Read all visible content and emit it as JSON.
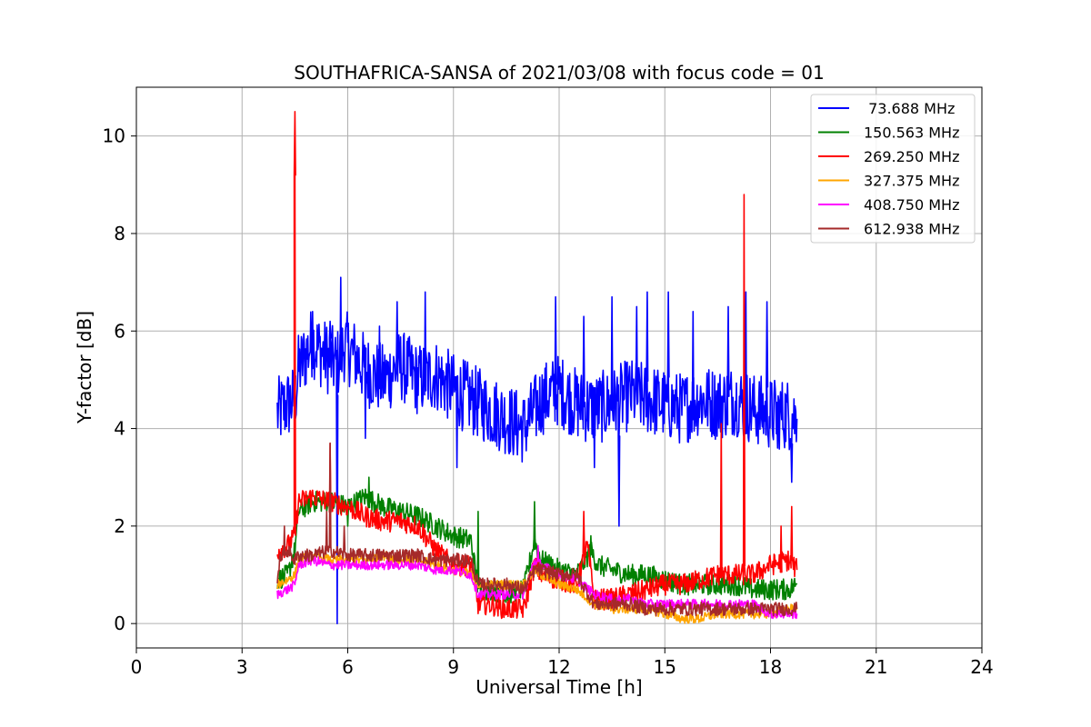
{
  "chart_data": {
    "type": "line",
    "title": "SOUTHAFRICA-SANSA of 2021/03/08 with focus code = 01",
    "xlabel": "Universal Time [h]",
    "ylabel": "Y-factor [dB]",
    "xlim": [
      0,
      24
    ],
    "ylim": [
      -0.5,
      11
    ],
    "xticks": [
      0,
      3,
      6,
      9,
      12,
      15,
      18,
      21,
      24
    ],
    "yticks": [
      0,
      2,
      4,
      6,
      8,
      10
    ],
    "grid": true,
    "legend_position": "top-right",
    "series": [
      {
        "name": " 73.688 MHz",
        "color": "#0000ff",
        "points": [
          [
            4.0,
            4.3
          ],
          [
            4.3,
            4.5
          ],
          [
            4.5,
            4.6
          ],
          [
            4.6,
            5.2
          ],
          [
            4.8,
            5.5
          ],
          [
            5.0,
            5.8
          ],
          [
            5.2,
            5.6
          ],
          [
            5.5,
            5.4
          ],
          [
            5.7,
            5.3
          ],
          [
            5.9,
            5.7
          ],
          [
            6.2,
            5.5
          ],
          [
            6.5,
            5.2
          ],
          [
            7.0,
            5.0
          ],
          [
            7.5,
            5.3
          ],
          [
            8.0,
            5.0
          ],
          [
            8.5,
            5.1
          ],
          [
            9.0,
            4.8
          ],
          [
            9.5,
            4.6
          ],
          [
            10.0,
            4.4
          ],
          [
            10.5,
            4.2
          ],
          [
            11.0,
            4.0
          ],
          [
            11.5,
            4.6
          ],
          [
            12.0,
            4.8
          ],
          [
            12.5,
            4.5
          ],
          [
            13.0,
            4.4
          ],
          [
            13.5,
            4.5
          ],
          [
            14.0,
            4.7
          ],
          [
            14.5,
            4.6
          ],
          [
            15.0,
            4.5
          ],
          [
            15.5,
            4.4
          ],
          [
            16.0,
            4.6
          ],
          [
            16.5,
            4.5
          ],
          [
            17.0,
            4.6
          ],
          [
            17.5,
            4.4
          ],
          [
            18.0,
            4.3
          ],
          [
            18.5,
            4.3
          ],
          [
            18.75,
            4.2
          ]
        ],
        "spikes": [
          [
            4.5,
            4.6
          ],
          [
            5.0,
            6.4
          ],
          [
            5.5,
            6.2
          ],
          [
            5.7,
            0.0
          ],
          [
            5.8,
            7.1
          ],
          [
            6.5,
            3.8
          ],
          [
            6.9,
            6.1
          ],
          [
            7.4,
            6.6
          ],
          [
            8.2,
            6.8
          ],
          [
            9.1,
            3.2
          ],
          [
            11.9,
            6.7
          ],
          [
            12.7,
            6.3
          ],
          [
            13.0,
            3.2
          ],
          [
            13.5,
            6.7
          ],
          [
            13.7,
            2.0
          ],
          [
            14.2,
            6.5
          ],
          [
            14.5,
            6.8
          ],
          [
            15.1,
            6.8
          ],
          [
            15.8,
            6.4
          ],
          [
            16.8,
            6.5
          ],
          [
            17.3,
            6.8
          ],
          [
            17.9,
            6.6
          ],
          [
            18.2,
            3.6
          ],
          [
            18.6,
            2.9
          ]
        ]
      },
      {
        "name": "150.563 MHz",
        "color": "#008000",
        "points": [
          [
            4.0,
            0.9
          ],
          [
            4.3,
            1.0
          ],
          [
            4.5,
            1.5
          ],
          [
            4.6,
            2.3
          ],
          [
            5.0,
            2.5
          ],
          [
            5.5,
            2.5
          ],
          [
            6.0,
            2.4
          ],
          [
            6.5,
            2.6
          ],
          [
            7.0,
            2.4
          ],
          [
            7.5,
            2.3
          ],
          [
            8.0,
            2.2
          ],
          [
            8.5,
            2.0
          ],
          [
            9.0,
            1.8
          ],
          [
            9.5,
            1.7
          ],
          [
            9.7,
            0.7
          ],
          [
            10.0,
            0.7
          ],
          [
            10.5,
            0.6
          ],
          [
            11.0,
            0.7
          ],
          [
            11.3,
            1.7
          ],
          [
            11.5,
            1.3
          ],
          [
            12.0,
            1.1
          ],
          [
            12.5,
            1.0
          ],
          [
            12.9,
            1.5
          ],
          [
            13.1,
            1.2
          ],
          [
            13.5,
            1.1
          ],
          [
            14.0,
            1.0
          ],
          [
            14.5,
            1.0
          ],
          [
            15.0,
            0.9
          ],
          [
            15.5,
            0.8
          ],
          [
            16.0,
            0.8
          ],
          [
            16.5,
            0.8
          ],
          [
            17.0,
            0.8
          ],
          [
            17.5,
            0.7
          ],
          [
            18.0,
            0.7
          ],
          [
            18.5,
            0.7
          ],
          [
            18.75,
            0.8
          ]
        ],
        "spikes": [
          [
            6.0,
            2.0
          ],
          [
            6.6,
            3.0
          ],
          [
            9.7,
            2.3
          ],
          [
            11.3,
            2.5
          ],
          [
            12.9,
            1.8
          ]
        ]
      },
      {
        "name": "269.250 MHz",
        "color": "#ff0000",
        "points": [
          [
            4.0,
            1.5
          ],
          [
            4.3,
            1.6
          ],
          [
            4.5,
            1.8
          ],
          [
            4.6,
            2.5
          ],
          [
            5.0,
            2.6
          ],
          [
            5.5,
            2.5
          ],
          [
            6.0,
            2.4
          ],
          [
            6.5,
            2.2
          ],
          [
            7.0,
            2.1
          ],
          [
            7.5,
            2.1
          ],
          [
            8.0,
            2.0
          ],
          [
            8.5,
            1.5
          ],
          [
            9.0,
            1.2
          ],
          [
            9.5,
            1.2
          ],
          [
            9.7,
            0.4
          ],
          [
            10.0,
            0.4
          ],
          [
            10.5,
            0.3
          ],
          [
            11.0,
            0.3
          ],
          [
            11.3,
            1.2
          ],
          [
            11.5,
            1.0
          ],
          [
            12.0,
            0.9
          ],
          [
            12.5,
            0.8
          ],
          [
            12.8,
            1.6
          ],
          [
            13.0,
            0.5
          ],
          [
            13.5,
            0.5
          ],
          [
            14.0,
            0.6
          ],
          [
            14.5,
            0.7
          ],
          [
            15.0,
            0.8
          ],
          [
            15.5,
            0.8
          ],
          [
            16.0,
            0.9
          ],
          [
            16.5,
            1.0
          ],
          [
            17.0,
            1.0
          ],
          [
            17.5,
            1.0
          ],
          [
            18.0,
            1.2
          ],
          [
            18.5,
            1.3
          ],
          [
            18.75,
            1.1
          ]
        ],
        "spikes": [
          [
            4.5,
            9.2
          ],
          [
            4.5,
            10.5
          ],
          [
            5.5,
            3.7
          ],
          [
            12.7,
            2.3
          ],
          [
            16.6,
            4.1
          ],
          [
            17.25,
            8.8
          ],
          [
            18.3,
            2.0
          ],
          [
            18.6,
            2.4
          ]
        ]
      },
      {
        "name": "327.375 MHz",
        "color": "#ffa500",
        "points": [
          [
            4.0,
            0.8
          ],
          [
            4.3,
            0.9
          ],
          [
            4.5,
            1.0
          ],
          [
            4.6,
            1.3
          ],
          [
            5.0,
            1.4
          ],
          [
            5.5,
            1.3
          ],
          [
            6.0,
            1.3
          ],
          [
            6.5,
            1.3
          ],
          [
            7.0,
            1.4
          ],
          [
            7.5,
            1.3
          ],
          [
            8.0,
            1.3
          ],
          [
            8.5,
            1.2
          ],
          [
            9.0,
            1.1
          ],
          [
            9.5,
            1.0
          ],
          [
            9.7,
            0.8
          ],
          [
            10.0,
            0.8
          ],
          [
            10.5,
            0.8
          ],
          [
            11.0,
            0.8
          ],
          [
            11.3,
            1.1
          ],
          [
            11.5,
            1.0
          ],
          [
            12.0,
            0.8
          ],
          [
            12.5,
            0.7
          ],
          [
            13.0,
            0.4
          ],
          [
            13.5,
            0.3
          ],
          [
            14.0,
            0.3
          ],
          [
            14.5,
            0.3
          ],
          [
            15.0,
            0.2
          ],
          [
            15.5,
            0.1
          ],
          [
            16.0,
            0.1
          ],
          [
            16.5,
            0.2
          ],
          [
            17.0,
            0.2
          ],
          [
            17.5,
            0.2
          ],
          [
            18.0,
            0.2
          ],
          [
            18.5,
            0.3
          ],
          [
            18.75,
            0.3
          ]
        ],
        "spikes": []
      },
      {
        "name": "408.750 MHz",
        "color": "#ff00ff",
        "points": [
          [
            4.0,
            0.6
          ],
          [
            4.3,
            0.7
          ],
          [
            4.5,
            0.8
          ],
          [
            4.6,
            1.2
          ],
          [
            5.0,
            1.3
          ],
          [
            5.5,
            1.2
          ],
          [
            6.0,
            1.2
          ],
          [
            6.5,
            1.2
          ],
          [
            7.0,
            1.2
          ],
          [
            7.5,
            1.2
          ],
          [
            8.0,
            1.2
          ],
          [
            8.5,
            1.1
          ],
          [
            9.0,
            1.1
          ],
          [
            9.5,
            1.0
          ],
          [
            9.7,
            0.6
          ],
          [
            10.0,
            0.6
          ],
          [
            10.5,
            0.6
          ],
          [
            11.0,
            0.6
          ],
          [
            11.3,
            1.3
          ],
          [
            11.5,
            1.2
          ],
          [
            12.0,
            1.0
          ],
          [
            12.5,
            0.9
          ],
          [
            13.0,
            0.6
          ],
          [
            13.5,
            0.5
          ],
          [
            14.0,
            0.5
          ],
          [
            14.5,
            0.4
          ],
          [
            15.0,
            0.4
          ],
          [
            15.5,
            0.4
          ],
          [
            16.0,
            0.4
          ],
          [
            16.5,
            0.4
          ],
          [
            17.0,
            0.4
          ],
          [
            17.5,
            0.4
          ],
          [
            18.0,
            0.2
          ],
          [
            18.5,
            0.2
          ],
          [
            18.75,
            0.2
          ]
        ],
        "spikes": [
          [
            11.4,
            1.6
          ]
        ]
      },
      {
        "name": "612.938 MHz",
        "color": "#a52a2a",
        "points": [
          [
            4.0,
            0.9
          ],
          [
            4.1,
            1.4
          ],
          [
            4.3,
            1.5
          ],
          [
            4.5,
            1.3
          ],
          [
            4.6,
            1.4
          ],
          [
            5.0,
            1.4
          ],
          [
            5.5,
            1.5
          ],
          [
            6.0,
            1.4
          ],
          [
            6.5,
            1.4
          ],
          [
            7.0,
            1.4
          ],
          [
            7.5,
            1.4
          ],
          [
            8.0,
            1.4
          ],
          [
            8.5,
            1.3
          ],
          [
            9.0,
            1.3
          ],
          [
            9.5,
            1.3
          ],
          [
            9.7,
            0.8
          ],
          [
            10.0,
            0.8
          ],
          [
            10.5,
            0.8
          ],
          [
            11.0,
            0.7
          ],
          [
            11.3,
            1.1
          ],
          [
            11.5,
            1.1
          ],
          [
            12.0,
            1.0
          ],
          [
            12.5,
            1.0
          ],
          [
            13.0,
            0.4
          ],
          [
            13.5,
            0.4
          ],
          [
            14.0,
            0.4
          ],
          [
            14.5,
            0.3
          ],
          [
            15.0,
            0.3
          ],
          [
            15.5,
            0.3
          ],
          [
            16.0,
            0.3
          ],
          [
            16.5,
            0.3
          ],
          [
            17.0,
            0.3
          ],
          [
            17.5,
            0.3
          ],
          [
            18.0,
            0.3
          ],
          [
            18.5,
            0.3
          ],
          [
            18.75,
            0.3
          ]
        ],
        "spikes": [
          [
            4.2,
            2.0
          ],
          [
            5.4,
            2.3
          ],
          [
            5.5,
            3.7
          ],
          [
            5.9,
            2.0
          ]
        ]
      }
    ]
  }
}
